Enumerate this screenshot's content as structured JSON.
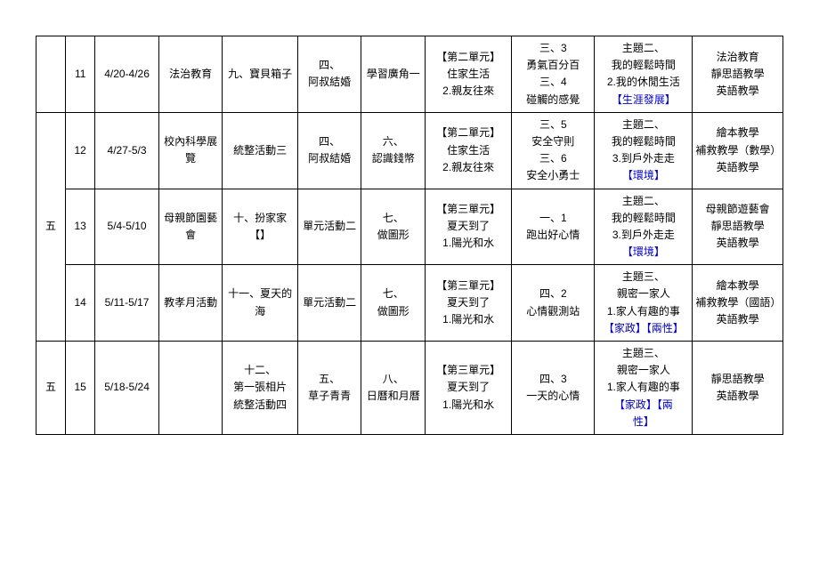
{
  "colors": {
    "text": "#000000",
    "tag": "#0000cc",
    "border": "#000000",
    "background": "#ffffff"
  },
  "rows": [
    {
      "month": "",
      "week": "11",
      "date": "4/20-4/26",
      "c1": "法治教育",
      "c2": "九、寶貝箱子",
      "c3_l1": "四、",
      "c3_l2": "阿叔結婚",
      "c4": "學習廣角一",
      "c5_l1": "【第二單元】",
      "c5_l2": "住家生活",
      "c5_l3": "2.親友往來",
      "c6_l1": "三、3",
      "c6_l2": "勇氣百分百",
      "c6_l3": "三、4",
      "c6_l4": "碰觸的感覺",
      "c7_l1": "主題二、",
      "c7_l2": "我的輕鬆時間",
      "c7_l3": "2.我的休閒生活",
      "c7_tag": "【生涯發展】",
      "c8_l1": "法治教育",
      "c8_l2": "靜思語教學",
      "c8_l3": "英語教學"
    },
    {
      "month": "五",
      "month_span": 3,
      "week": "12",
      "date": "4/27-5/3",
      "c1_l1": "校內科學展",
      "c1_l2": "覽",
      "c2": "統整活動三",
      "c3_l1": "四、",
      "c3_l2": "阿叔結婚",
      "c4_l1": "六、",
      "c4_l2": "認識錢幣",
      "c5_l1": "【第二單元】",
      "c5_l2": "住家生活",
      "c5_l3": "2.親友往來",
      "c6_l1": "三、5",
      "c6_l2": "安全守則",
      "c6_l3": "三、6",
      "c6_l4": "安全小勇士",
      "c7_l1": "主題二、",
      "c7_l2": "我的輕鬆時間",
      "c7_l3": "3.到戶外走走",
      "c7_tag": "【環境】",
      "c8_l1": "繪本教學",
      "c8_l2": "補救教學（數學）",
      "c8_l3": "英語教學"
    },
    {
      "week": "13",
      "date": "5/4-5/10",
      "c1_l1": "母親節園藝",
      "c1_l2": "會",
      "c2_l1": "十、扮家家",
      "c2_l2": "【】",
      "c3": "單元活動二",
      "c4_l1": "七、",
      "c4_l2": "做圖形",
      "c5_l1": "【第三單元】",
      "c5_l2": "夏天到了",
      "c5_l3": "1.陽光和水",
      "c6_l1": "一、1",
      "c6_l2": "跑出好心情",
      "c7_l1": "主題二、",
      "c7_l2": "我的輕鬆時間",
      "c7_l3": "3.到戶外走走",
      "c7_tag": "【環境】",
      "c8_l1": "母親節遊藝會",
      "c8_l2": "靜思語教學",
      "c8_l3": "英語教學"
    },
    {
      "week": "14",
      "date": "5/11-5/17",
      "c1": "教孝月活動",
      "c2": "十一、夏天的海",
      "c3": "單元活動二",
      "c4_l1": "七、",
      "c4_l2": "做圖形",
      "c5_l1": "【第三單元】",
      "c5_l2": "夏天到了",
      "c5_l3": "1.陽光和水",
      "c6_l1": "四、2",
      "c6_l2": "心情觀測站",
      "c7_l1": "主題三、",
      "c7_l2": "親密一家人",
      "c7_l3": "1.家人有趣的事",
      "c7_tag": "【家政】【兩性】",
      "c8_l1": "繪本教學",
      "c8_l2": "補救教學（國語）",
      "c8_l3": "英語教學"
    },
    {
      "month": "五",
      "month_span": 1,
      "week": "15",
      "date": "5/18-5/24",
      "c1": "",
      "c2_l1": "十二、",
      "c2_l2": "第一張相片",
      "c2_l3": "統整活動四",
      "c3_l1": "五、",
      "c3_l2": "草子青青",
      "c4_l1": "八、",
      "c4_l2": "日曆和月曆",
      "c5_l1": "【第三單元】",
      "c5_l2": "夏天到了",
      "c5_l3": "1.陽光和水",
      "c6_l1": "四、3",
      "c6_l2": "一天的心情",
      "c7_l1": "主題三、",
      "c7_l2": "親密一家人",
      "c7_l3": "1.家人有趣的事",
      "c7_tag1": "【家政】【兩",
      "c7_tag2": "性】",
      "c8_l1": "靜思語教學",
      "c8_l2": "英語教學"
    }
  ]
}
